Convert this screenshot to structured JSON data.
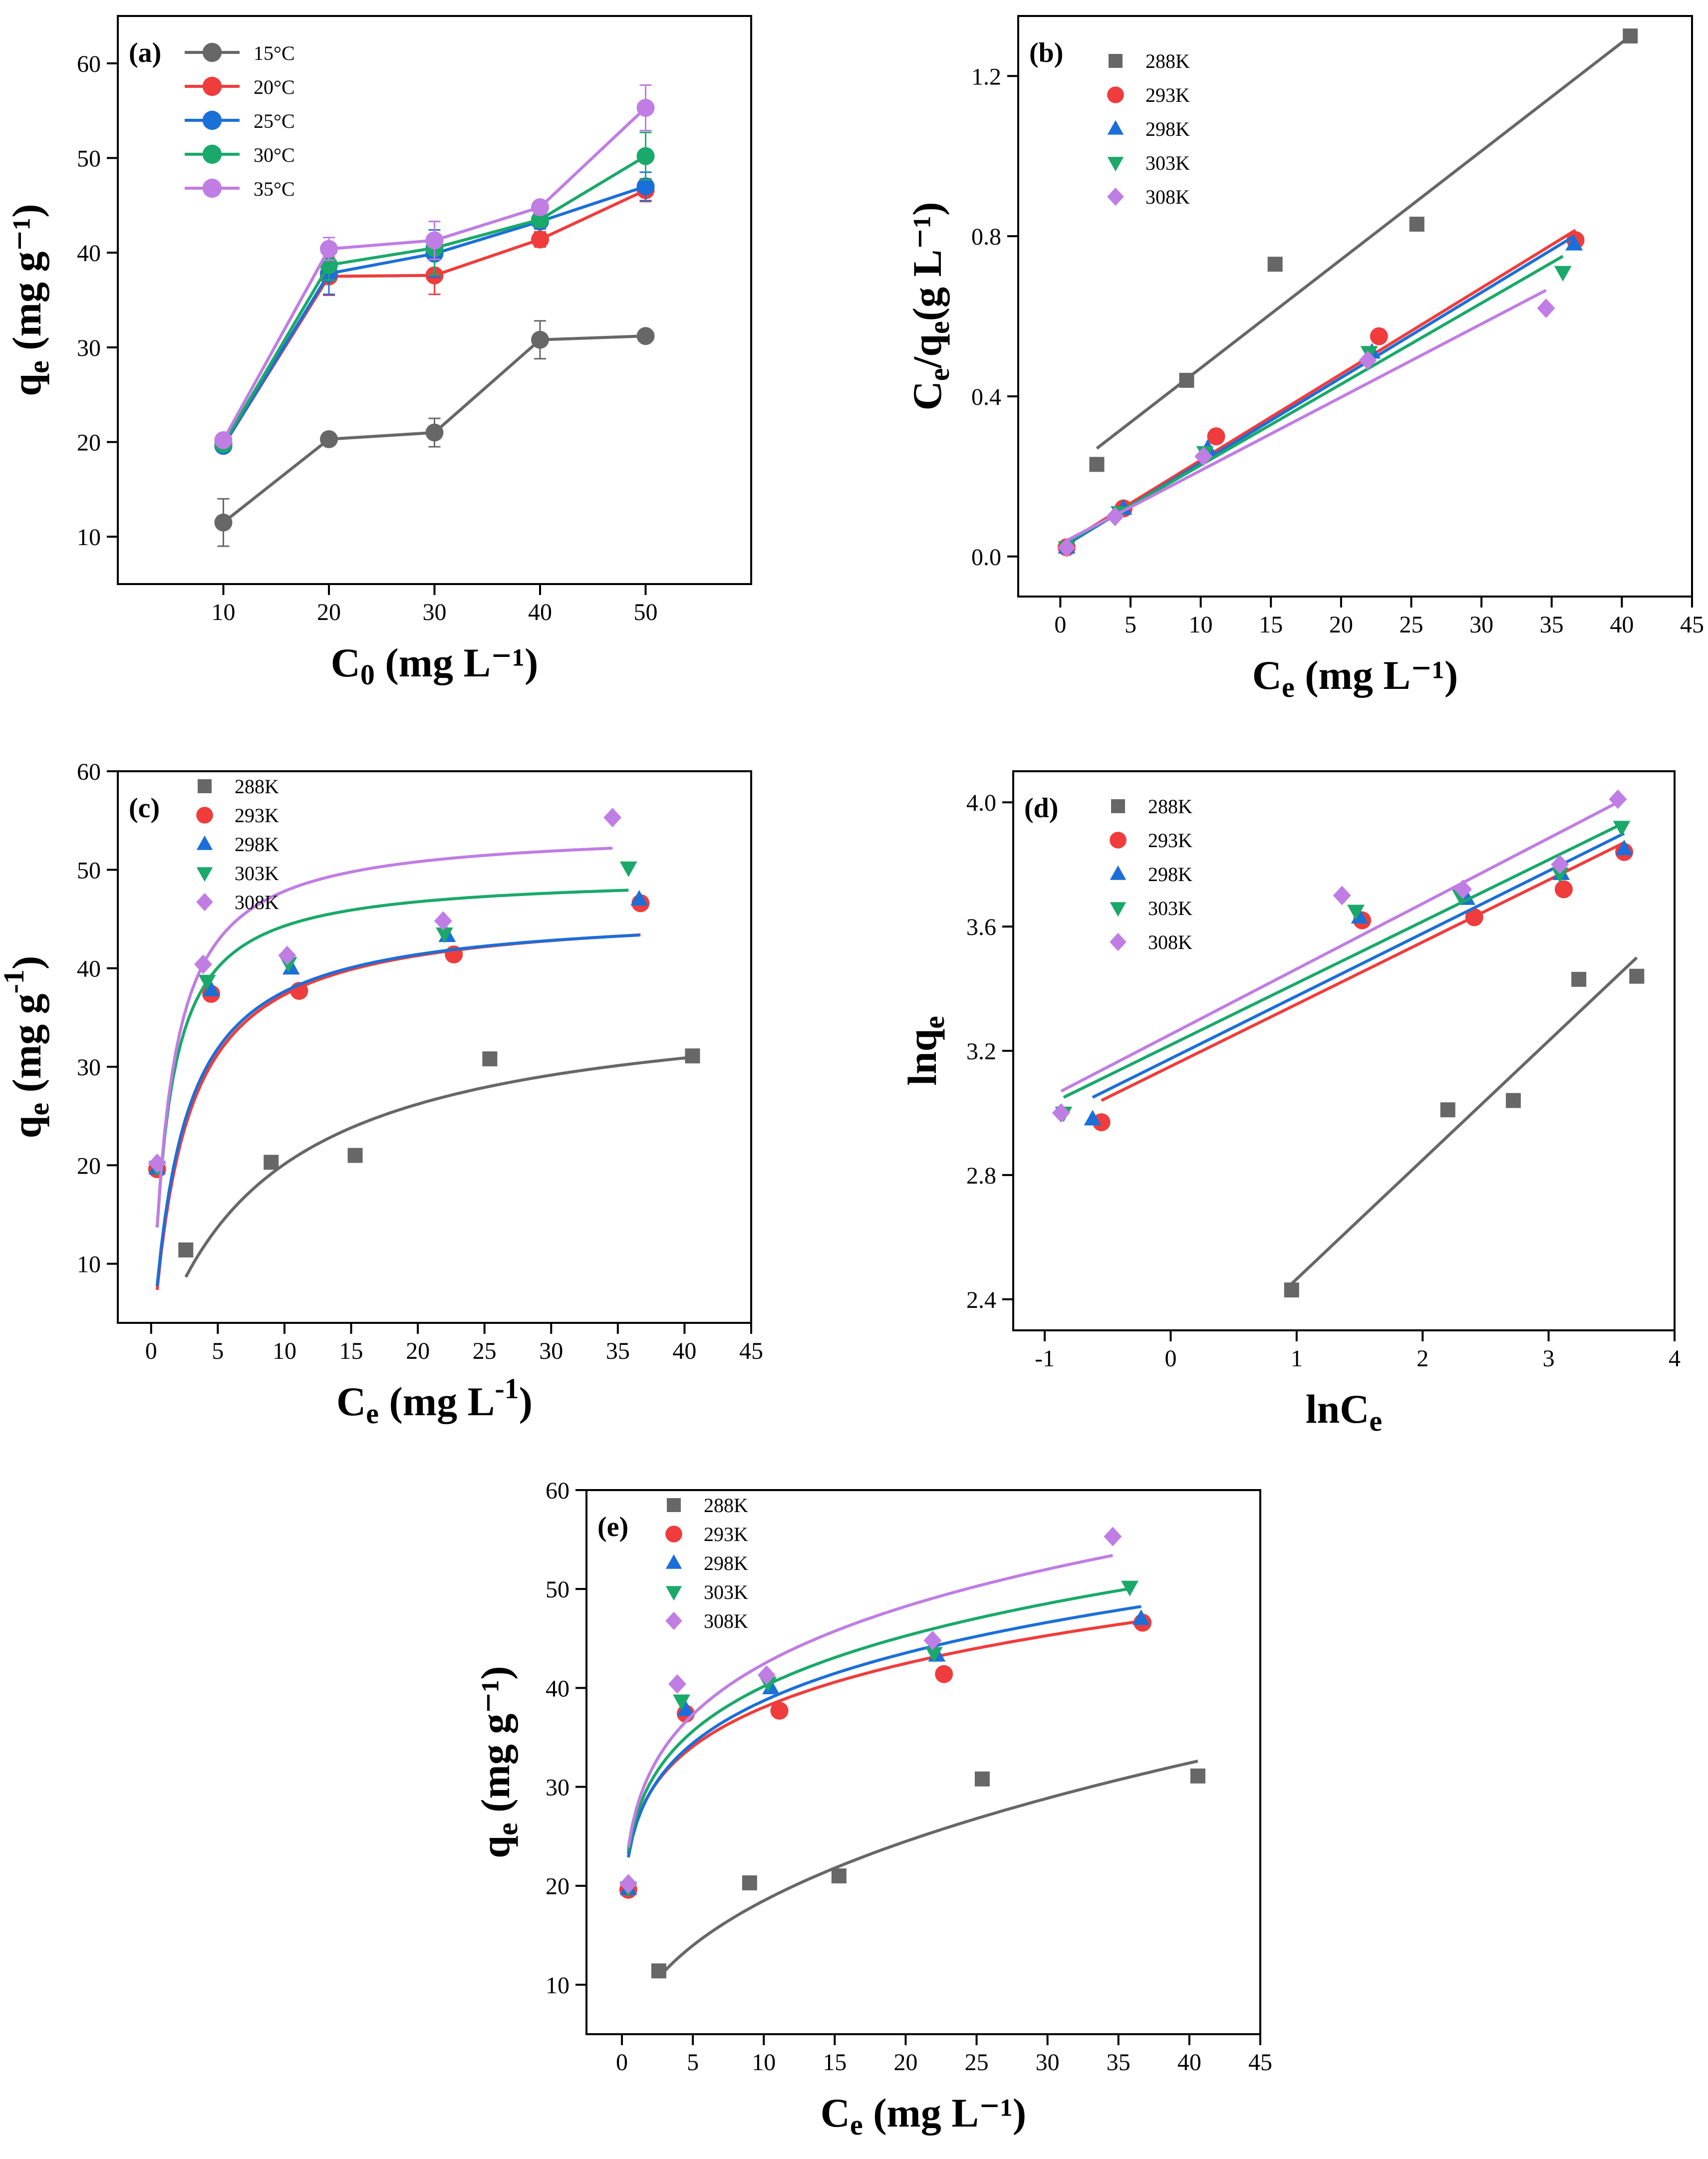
{
  "figure": {
    "palette": [
      "#676767",
      "#f03c3c",
      "#1b6fd8",
      "#1aa96a",
      "#c07de4"
    ]
  },
  "chart_data": [
    {
      "id": "a",
      "panel_label": "(a)",
      "type": "line",
      "xlabel": {
        "main": "C",
        "sub": "0",
        "rest": " (mg L⁻¹)"
      },
      "ylabel": {
        "main": "q",
        "sub": "e",
        "rest": " (mg g⁻¹)"
      },
      "xlim": [
        0,
        60
      ],
      "ylim": [
        5,
        65
      ],
      "xticks": [
        10,
        20,
        30,
        40,
        50
      ],
      "yticks": [
        10,
        20,
        30,
        40,
        50,
        60
      ],
      "series": [
        {
          "name": "15°C",
          "marker": "circle",
          "x": [
            10,
            20,
            30,
            40,
            50
          ],
          "y": [
            11.5,
            20.3,
            21.0,
            30.8,
            31.2
          ],
          "err": [
            2.5,
            0.5,
            1.5,
            2.0,
            0.4
          ]
        },
        {
          "name": "20°C",
          "marker": "circle",
          "x": [
            10,
            20,
            30,
            40,
            50
          ],
          "y": [
            19.6,
            37.5,
            37.6,
            41.4,
            46.6
          ],
          "err": [
            0.4,
            2.0,
            2.0,
            0.8,
            1.2
          ]
        },
        {
          "name": "25°C",
          "marker": "circle",
          "x": [
            10,
            20,
            30,
            40,
            50
          ],
          "y": [
            19.6,
            37.8,
            39.9,
            43.3,
            47.0
          ],
          "err": [
            0.4,
            2.2,
            2.5,
            0.8,
            1.5
          ]
        },
        {
          "name": "30°C",
          "marker": "circle",
          "x": [
            10,
            20,
            30,
            40,
            50
          ],
          "y": [
            19.8,
            38.7,
            40.5,
            43.5,
            50.2
          ],
          "err": [
            0.4,
            1.6,
            2.8,
            0.8,
            2.5
          ]
        },
        {
          "name": "35°C",
          "marker": "circle",
          "x": [
            10,
            20,
            30,
            40,
            50
          ],
          "y": [
            20.2,
            40.4,
            41.3,
            44.8,
            55.3
          ],
          "err": [
            0.4,
            1.2,
            2.0,
            0.6,
            2.4
          ]
        }
      ]
    },
    {
      "id": "b",
      "panel_label": "(b)",
      "type": "scatter",
      "xlabel": {
        "main": "C",
        "sub": "e",
        "rest": " (mg L⁻¹)"
      },
      "ylabel": {
        "main": "C",
        "sub": "e",
        "rest": "/q",
        "sub2": "e",
        "rest2": "(g L⁻¹)"
      },
      "xlim": [
        -3,
        45
      ],
      "ylim": [
        -0.1,
        1.35
      ],
      "xticks": [
        0,
        5,
        10,
        15,
        20,
        25,
        30,
        35,
        40,
        45
      ],
      "yticks": [
        0.0,
        0.4,
        0.8,
        1.2
      ],
      "ytick_decimals": 1,
      "series": [
        {
          "name": "288K",
          "marker": "square",
          "x": [
            2.6,
            9.0,
            15.3,
            25.4,
            40.6
          ],
          "y": [
            0.23,
            0.44,
            0.73,
            0.83,
            1.3
          ],
          "fit_type": "linear",
          "fit": [
            [
              2.6,
              0.27
            ],
            [
              40.6,
              1.3
            ]
          ]
        },
        {
          "name": "293K",
          "marker": "circle",
          "x": [
            0.45,
            4.5,
            11.1,
            22.7,
            36.7
          ],
          "y": [
            0.023,
            0.12,
            0.3,
            0.55,
            0.79
          ],
          "fit_type": "linear",
          "fit": [
            [
              0.45,
              0.035
            ],
            [
              36.7,
              0.815
            ]
          ]
        },
        {
          "name": "298K",
          "marker": "triangle-up",
          "x": [
            0.45,
            4.5,
            10.5,
            22.2,
            36.6
          ],
          "y": [
            0.023,
            0.12,
            0.27,
            0.51,
            0.78
          ],
          "fit_type": "linear",
          "fit": [
            [
              0.45,
              0.03
            ],
            [
              36.6,
              0.8
            ]
          ]
        },
        {
          "name": "303K",
          "marker": "triangle-down",
          "x": [
            0.45,
            4.2,
            10.3,
            22.0,
            35.8
          ],
          "y": [
            0.022,
            0.11,
            0.26,
            0.51,
            0.71
          ],
          "fit_type": "linear",
          "fit": [
            [
              0.45,
              0.035
            ],
            [
              35.8,
              0.75
            ]
          ]
        },
        {
          "name": "308K",
          "marker": "diamond",
          "x": [
            0.45,
            3.9,
            10.2,
            21.9,
            34.6
          ],
          "y": [
            0.022,
            0.1,
            0.25,
            0.49,
            0.62
          ],
          "fit_type": "linear",
          "fit": [
            [
              0.45,
              0.04
            ],
            [
              34.6,
              0.665
            ]
          ]
        }
      ]
    },
    {
      "id": "c",
      "panel_label": "(c)",
      "type": "scatter",
      "xlabel": {
        "main": "C",
        "sub": "e",
        "rest": " (mg L",
        "sup": "-1",
        "rest2": ")"
      },
      "ylabel": {
        "main": "q",
        "sub": "e",
        "rest": " (mg g",
        "sup": "-1",
        "rest2": ")"
      },
      "xlim": [
        -2.5,
        45
      ],
      "ylim": [
        4,
        60
      ],
      "xticks": [
        0,
        5,
        10,
        15,
        20,
        25,
        30,
        35,
        40,
        45
      ],
      "yticks": [
        10,
        20,
        30,
        40,
        50,
        60
      ],
      "series": [
        {
          "name": "288K",
          "marker": "square",
          "x": [
            2.6,
            9.0,
            15.3,
            25.4,
            40.6
          ],
          "y": [
            11.4,
            20.3,
            21.0,
            30.8,
            31.1
          ],
          "fit_type": "langmuir",
          "qm": 37.6,
          "k": 0.115,
          "xrange": [
            2.6,
            40.6
          ]
        },
        {
          "name": "293K",
          "marker": "circle",
          "x": [
            0.45,
            4.5,
            11.1,
            22.7,
            36.7
          ],
          "y": [
            19.6,
            37.4,
            37.7,
            41.4,
            46.6
          ],
          "fit_type": "langmuir",
          "qm": 46.2,
          "k": 0.42,
          "xrange": [
            0.45,
            36.7
          ]
        },
        {
          "name": "298K",
          "marker": "triangle-up",
          "x": [
            0.45,
            4.5,
            10.5,
            22.2,
            36.6
          ],
          "y": [
            19.7,
            37.8,
            40.0,
            43.3,
            47.0
          ],
          "fit_type": "langmuir",
          "qm": 46.0,
          "k": 0.45,
          "xrange": [
            0.45,
            36.6
          ]
        },
        {
          "name": "303K",
          "marker": "triangle-down",
          "x": [
            0.45,
            4.2,
            10.3,
            22.0,
            35.8
          ],
          "y": [
            19.8,
            38.7,
            40.5,
            43.5,
            50.2
          ],
          "fit_type": "langmuir",
          "qm": 49.5,
          "k": 0.85,
          "xrange": [
            0.45,
            35.8
          ]
        },
        {
          "name": "308K",
          "marker": "diamond",
          "x": [
            0.45,
            3.9,
            10.2,
            21.9,
            34.6
          ],
          "y": [
            20.2,
            40.4,
            41.3,
            44.8,
            55.3
          ],
          "fit_type": "langmuir",
          "qm": 54.2,
          "k": 0.75,
          "xrange": [
            0.45,
            34.6
          ]
        }
      ]
    },
    {
      "id": "d",
      "panel_label": "(d)",
      "type": "scatter",
      "xlabel": {
        "main": "lnC",
        "sub": "e",
        "rest": ""
      },
      "ylabel": {
        "main": "lnq",
        "sub": "e",
        "rest": ""
      },
      "xlim": [
        -1.25,
        4
      ],
      "ylim": [
        2.3,
        4.1
      ],
      "xticks": [
        -1,
        0,
        1,
        2,
        3,
        4
      ],
      "yticks": [
        2.4,
        2.8,
        3.2,
        3.6,
        4.0
      ],
      "ytick_decimals": 1,
      "series": [
        {
          "name": "288K",
          "marker": "square",
          "x": [
            0.96,
            2.2,
            2.72,
            3.24,
            3.7
          ],
          "y": [
            2.43,
            3.01,
            3.04,
            3.43,
            3.44
          ],
          "fit_type": "linear",
          "fit": [
            [
              0.96,
              2.45
            ],
            [
              3.7,
              3.5
            ]
          ]
        },
        {
          "name": "293K",
          "marker": "circle",
          "x": [
            -0.55,
            1.52,
            2.41,
            3.12,
            3.6
          ],
          "y": [
            2.97,
            3.62,
            3.63,
            3.72,
            3.84
          ],
          "fit_type": "linear",
          "fit": [
            [
              -0.55,
              3.04
            ],
            [
              3.6,
              3.87
            ]
          ]
        },
        {
          "name": "298K",
          "marker": "triangle-up",
          "x": [
            -0.62,
            1.5,
            2.35,
            3.1,
            3.6
          ],
          "y": [
            2.98,
            3.63,
            3.69,
            3.77,
            3.85
          ],
          "fit_type": "linear",
          "fit": [
            [
              -0.62,
              3.05
            ],
            [
              3.6,
              3.9
            ]
          ]
        },
        {
          "name": "303K",
          "marker": "triangle-down",
          "x": [
            -0.85,
            1.47,
            2.3,
            3.09,
            3.58
          ],
          "y": [
            3.0,
            3.65,
            3.7,
            3.77,
            3.92
          ],
          "fit_type": "linear",
          "fit": [
            [
              -0.85,
              3.05
            ],
            [
              3.58,
              3.93
            ]
          ]
        },
        {
          "name": "308K",
          "marker": "diamond",
          "x": [
            -0.87,
            1.36,
            2.32,
            3.09,
            3.55
          ],
          "y": [
            3.0,
            3.7,
            3.72,
            3.8,
            4.01
          ],
          "fit_type": "linear",
          "fit": [
            [
              -0.87,
              3.07
            ],
            [
              3.55,
              4.0
            ]
          ]
        }
      ]
    },
    {
      "id": "e",
      "panel_label": "(e)",
      "type": "scatter",
      "xlabel": {
        "main": "C",
        "sub": "e",
        "rest": " (mg L⁻¹)"
      },
      "ylabel": {
        "main": "q",
        "sub": "e",
        "rest": " (mg g⁻¹)"
      },
      "xlim": [
        -2.5,
        45
      ],
      "ylim": [
        5,
        60
      ],
      "xticks": [
        0,
        5,
        10,
        15,
        20,
        25,
        30,
        35,
        40,
        45
      ],
      "yticks": [
        10,
        20,
        30,
        40,
        50,
        60
      ],
      "series": [
        {
          "name": "288K",
          "marker": "square",
          "x": [
            2.6,
            9.0,
            15.3,
            25.4,
            40.6
          ],
          "y": [
            11.4,
            20.3,
            21.0,
            30.8,
            31.1
          ],
          "fit_type": "freundlich",
          "kf": 7.28,
          "n": 2.47,
          "xrange": [
            2.6,
            40.6
          ]
        },
        {
          "name": "293K",
          "marker": "circle",
          "x": [
            0.45,
            4.5,
            11.1,
            22.7,
            36.7
          ],
          "y": [
            19.6,
            37.4,
            37.7,
            41.4,
            46.6
          ],
          "fit_type": "freundlich",
          "kf": 26.4,
          "n": 6.3,
          "xrange": [
            0.45,
            36.7
          ]
        },
        {
          "name": "298K",
          "marker": "triangle-up",
          "x": [
            0.45,
            4.5,
            10.5,
            22.2,
            36.6
          ],
          "y": [
            19.7,
            37.8,
            40.0,
            43.3,
            47.0
          ],
          "fit_type": "freundlich",
          "kf": 26.2,
          "n": 5.9,
          "xrange": [
            0.45,
            36.6
          ]
        },
        {
          "name": "303K",
          "marker": "triangle-down",
          "x": [
            0.45,
            4.2,
            10.3,
            22.0,
            35.8
          ],
          "y": [
            19.8,
            38.7,
            40.5,
            43.5,
            50.2
          ],
          "fit_type": "freundlich",
          "kf": 27.0,
          "n": 5.8,
          "xrange": [
            0.45,
            35.8
          ]
        },
        {
          "name": "308K",
          "marker": "diamond",
          "x": [
            0.45,
            3.9,
            10.2,
            21.9,
            34.6
          ],
          "y": [
            20.2,
            40.4,
            41.3,
            44.8,
            55.3
          ],
          "fit_type": "freundlich",
          "kf": 27.7,
          "n": 5.4,
          "xrange": [
            0.45,
            34.6
          ]
        }
      ]
    }
  ]
}
